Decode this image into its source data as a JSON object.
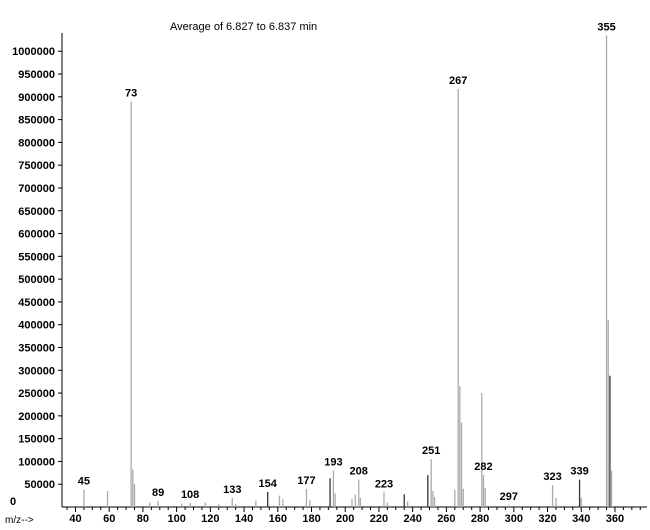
{
  "chart_data": {
    "type": "bar",
    "title": "Average of 6.827 to 6.837 min",
    "xlabel": "m/z-->",
    "ylabel": "",
    "xlim": [
      32,
      379
    ],
    "ylim": [
      0,
      1040000
    ],
    "x_ticks": [
      "40",
      "60",
      "80",
      "100",
      "120",
      "140",
      "160",
      "180",
      "200",
      "220",
      "240",
      "260",
      "280",
      "300",
      "320",
      "340",
      "360"
    ],
    "y_ticks": [
      "50000",
      "100000",
      "150000",
      "200000",
      "250000",
      "300000",
      "350000",
      "400000",
      "450000",
      "500000",
      "550000",
      "600000",
      "650000",
      "700000",
      "750000",
      "800000",
      "850000",
      "900000",
      "950000",
      "1000000"
    ],
    "y_zero_label": "0",
    "grid": false,
    "colors": {
      "light_peak": "#aaaaaa",
      "dark_peak": "#333333",
      "axis": "#000000"
    },
    "peaks": [
      {
        "mz": 45,
        "abundance": 38000,
        "label": "45"
      },
      {
        "mz": 59,
        "abundance": 35000
      },
      {
        "mz": 73,
        "abundance": 890000,
        "label": "73"
      },
      {
        "mz": 74,
        "abundance": 82000
      },
      {
        "mz": 75,
        "abundance": 50000
      },
      {
        "mz": 84,
        "abundance": 10000
      },
      {
        "mz": 89,
        "abundance": 13000,
        "label": "89"
      },
      {
        "mz": 103,
        "abundance": 7000
      },
      {
        "mz": 108,
        "abundance": 9000,
        "label": "108"
      },
      {
        "mz": 117,
        "abundance": 10000
      },
      {
        "mz": 125,
        "abundance": 6000
      },
      {
        "mz": 133,
        "abundance": 20000,
        "label": "133"
      },
      {
        "mz": 135,
        "abundance": 7000
      },
      {
        "mz": 147,
        "abundance": 14000
      },
      {
        "mz": 154,
        "abundance": 33000,
        "label": "154",
        "dark": true
      },
      {
        "mz": 161,
        "abundance": 25000
      },
      {
        "mz": 163,
        "abundance": 17000
      },
      {
        "mz": 177,
        "abundance": 40000,
        "label": "177"
      },
      {
        "mz": 179,
        "abundance": 15000
      },
      {
        "mz": 191,
        "abundance": 63000,
        "dark": true
      },
      {
        "mz": 193,
        "abundance": 80000,
        "label": "193"
      },
      {
        "mz": 194,
        "abundance": 30000
      },
      {
        "mz": 204,
        "abundance": 18000
      },
      {
        "mz": 206,
        "abundance": 27000
      },
      {
        "mz": 208,
        "abundance": 60000,
        "label": "208"
      },
      {
        "mz": 209,
        "abundance": 20000
      },
      {
        "mz": 223,
        "abundance": 32000,
        "label": "223"
      },
      {
        "mz": 225,
        "abundance": 10000
      },
      {
        "mz": 235,
        "abundance": 28000,
        "dark": true
      },
      {
        "mz": 237,
        "abundance": 12000
      },
      {
        "mz": 249,
        "abundance": 70000,
        "dark": true
      },
      {
        "mz": 251,
        "abundance": 105000,
        "label": "251"
      },
      {
        "mz": 252,
        "abundance": 35000
      },
      {
        "mz": 253,
        "abundance": 22000
      },
      {
        "mz": 265,
        "abundance": 38000
      },
      {
        "mz": 267,
        "abundance": 917000,
        "label": "267"
      },
      {
        "mz": 268,
        "abundance": 265000
      },
      {
        "mz": 269,
        "abundance": 185000
      },
      {
        "mz": 270,
        "abundance": 40000
      },
      {
        "mz": 281,
        "abundance": 250000
      },
      {
        "mz": 282,
        "abundance": 70000,
        "label": "282"
      },
      {
        "mz": 283,
        "abundance": 42000
      },
      {
        "mz": 297,
        "abundance": 4000,
        "label": "297"
      },
      {
        "mz": 323,
        "abundance": 48000,
        "label": "323"
      },
      {
        "mz": 325,
        "abundance": 20000
      },
      {
        "mz": 339,
        "abundance": 60000,
        "label": "339",
        "dark": true
      },
      {
        "mz": 340,
        "abundance": 20000
      },
      {
        "mz": 355,
        "abundance": 1035000,
        "label": "355"
      },
      {
        "mz": 356,
        "abundance": 410000
      },
      {
        "mz": 357,
        "abundance": 288000,
        "dark": true
      },
      {
        "mz": 358,
        "abundance": 80000
      }
    ]
  }
}
